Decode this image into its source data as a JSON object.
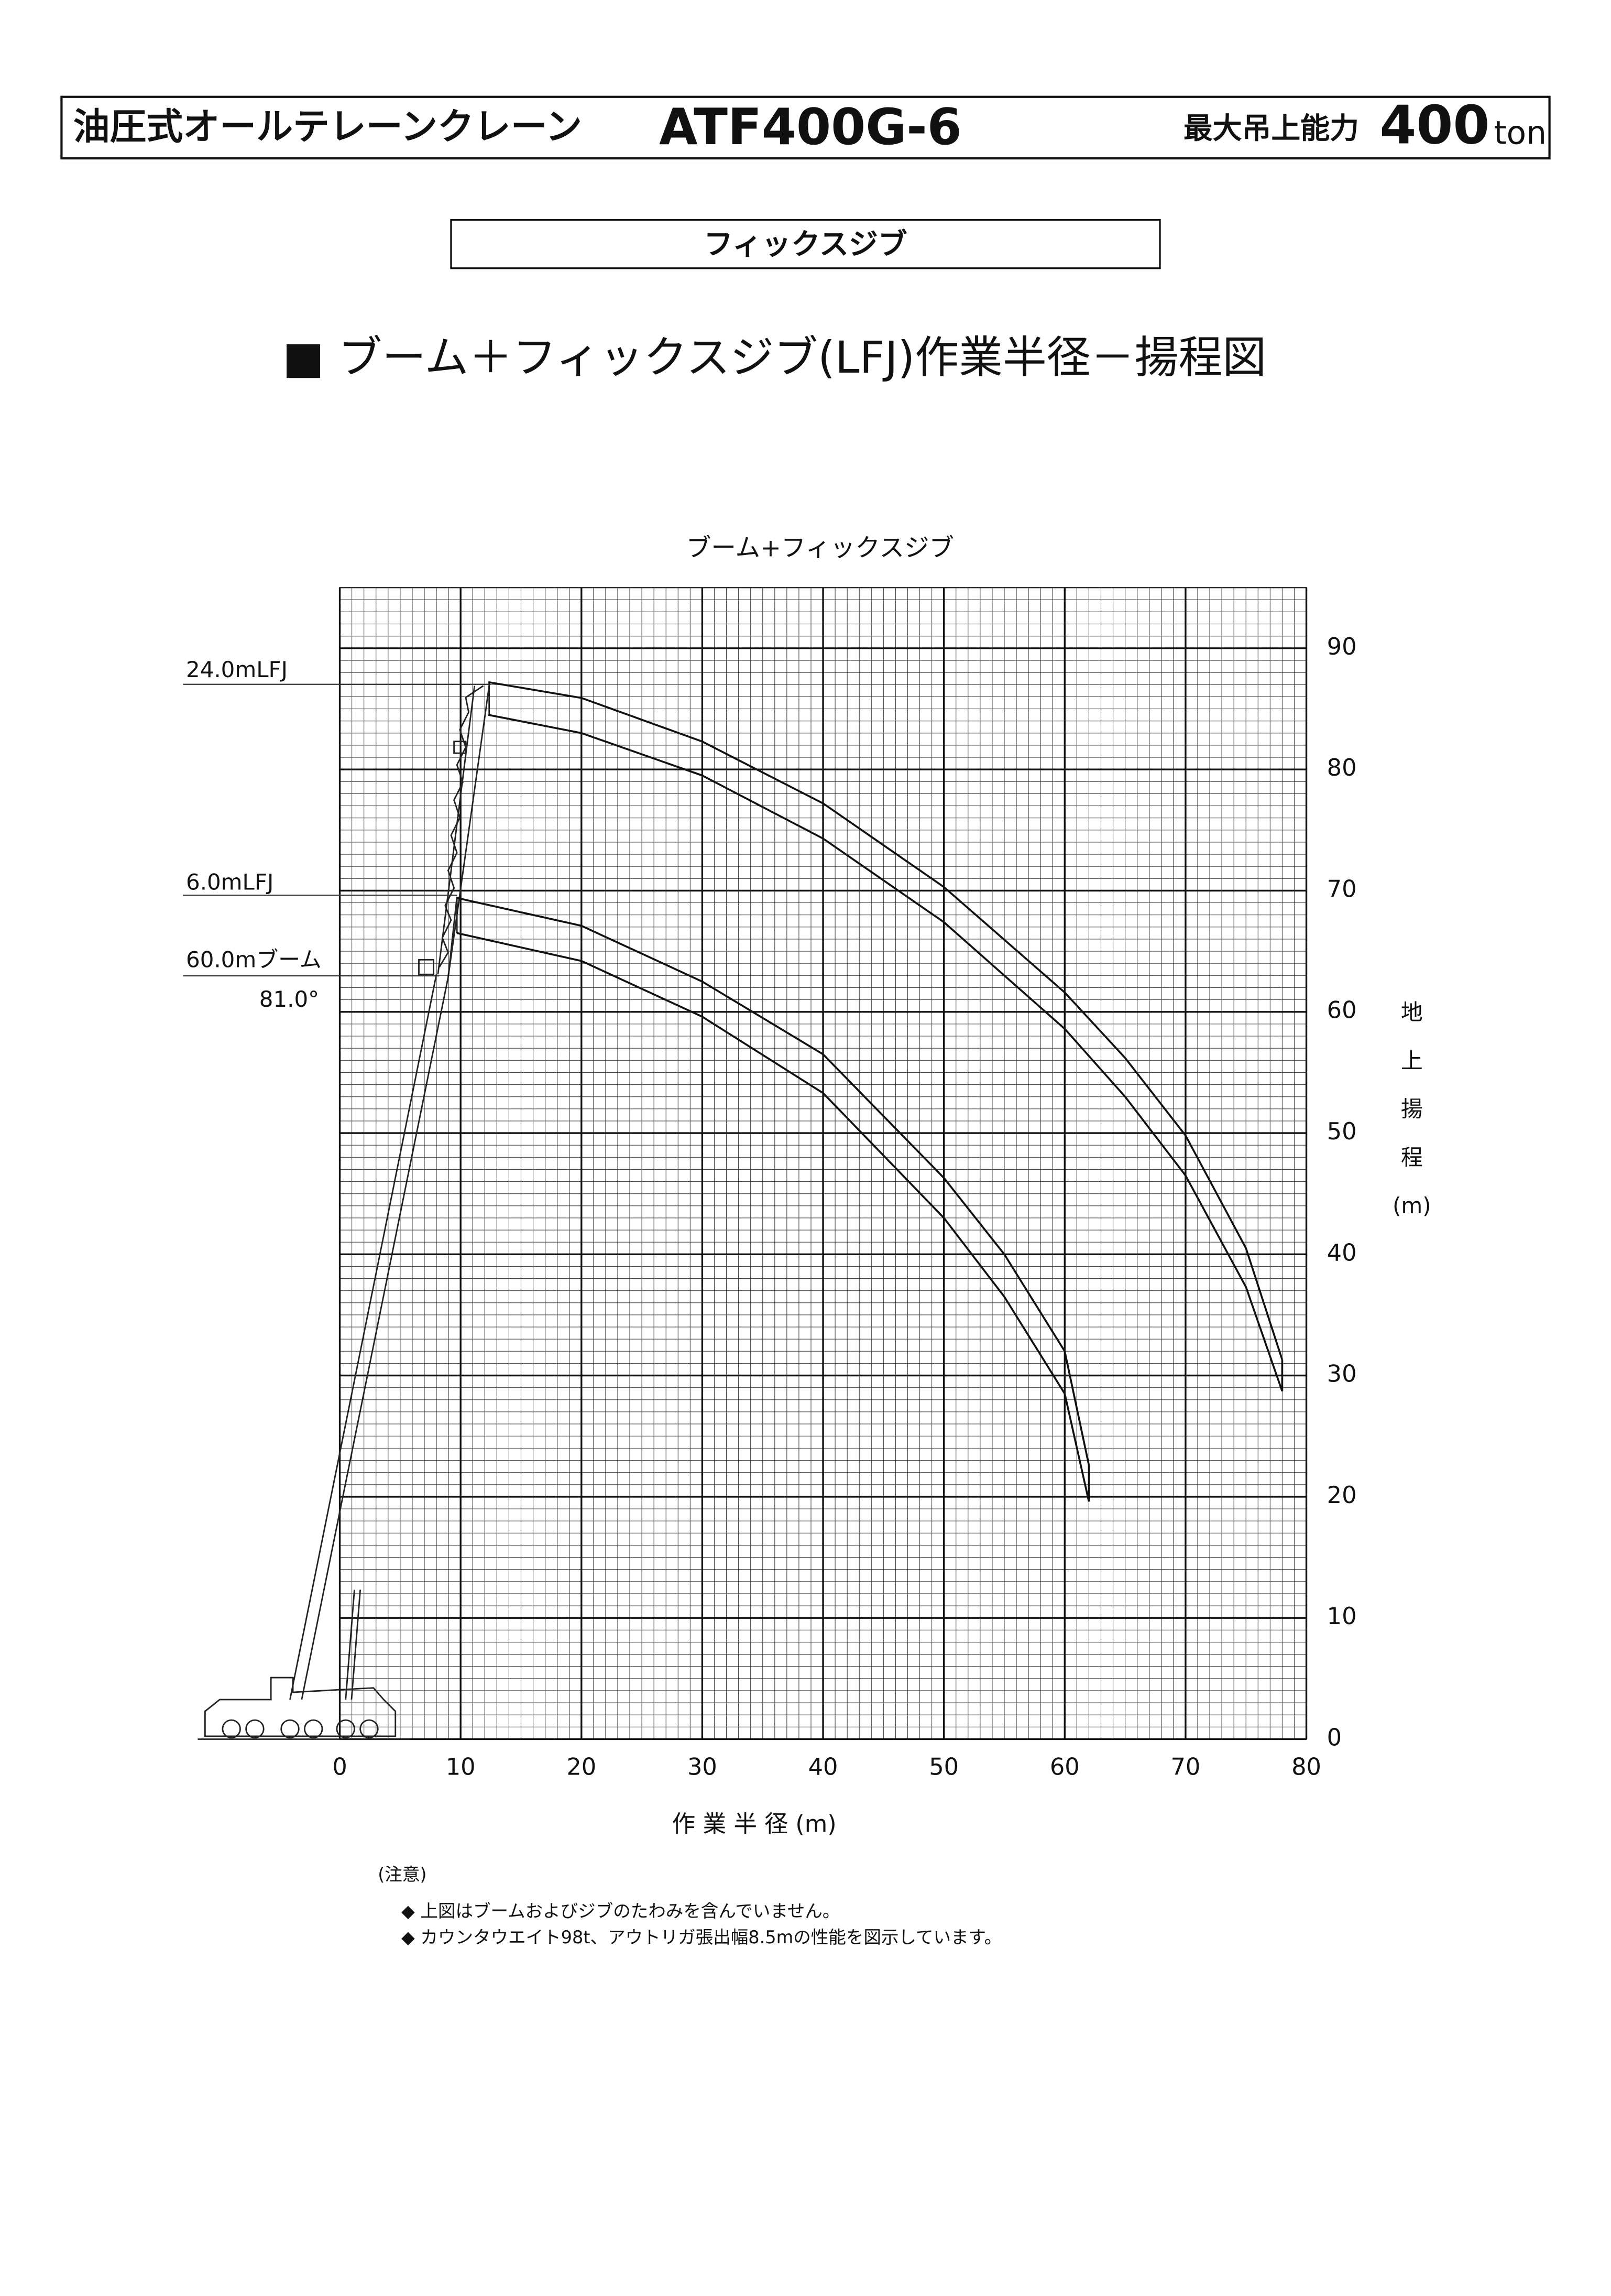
{
  "header": {
    "title": "油圧式オールテレーンクレーン",
    "model": "ATF400G-6",
    "capacity_label": "最大吊上能力",
    "capacity": 400,
    "unit": "ton"
  },
  "section": "フィックスジブ",
  "heading": "■ ブーム＋フィックスジブ(LFJ)作業半径－揚程図",
  "chart_data": {
    "type": "line",
    "title": "ブーム+フィックスジブ",
    "x_label": "作 業 半 径 (m)",
    "y_label": [
      "地",
      "上",
      "揚",
      "程",
      "(m)"
    ],
    "xlim": [
      0,
      80
    ],
    "ylim": [
      0,
      95
    ],
    "xticks": [
      0,
      10,
      20,
      30,
      40,
      50,
      60,
      70,
      80
    ],
    "yticks": [
      0,
      10,
      20,
      30,
      40,
      50,
      60,
      70,
      80,
      90
    ],
    "grid": true,
    "color": "#111111",
    "annotations": [
      "24.0mLFJ",
      "6.0mLFJ",
      "60.0mブーム",
      "81.0°"
    ],
    "series": [
      {
        "name": "24.0mLFJ",
        "x": [
          12.3,
          20,
          30,
          40,
          50,
          60,
          65,
          70,
          75,
          78
        ],
        "upper": [
          87.2,
          85.9,
          82.3,
          77.2,
          70.3,
          61.6,
          56.2,
          49.8,
          40.5,
          31.3
        ],
        "lower": [
          84.5,
          83.0,
          79.5,
          74.3,
          67.4,
          58.6,
          53.0,
          46.5,
          37.3,
          28.7
        ]
      },
      {
        "name": "6.0mLFJ",
        "x": [
          9.7,
          20,
          30,
          40,
          50,
          55,
          60,
          62
        ],
        "upper": [
          69.4,
          67.1,
          62.5,
          56.5,
          46.3,
          40,
          32,
          22.6
        ],
        "lower": [
          66.5,
          64.2,
          59.6,
          53.3,
          43,
          36.5,
          28.5,
          19.6
        ]
      }
    ]
  },
  "notes": {
    "title": "(注意)",
    "items": [
      "◆ 上図はブームおよびジブのたわみを含んでいません。",
      "◆ カウンタウエイト98t、アウトリガ張出幅8.5mの性能を図示しています。"
    ]
  }
}
